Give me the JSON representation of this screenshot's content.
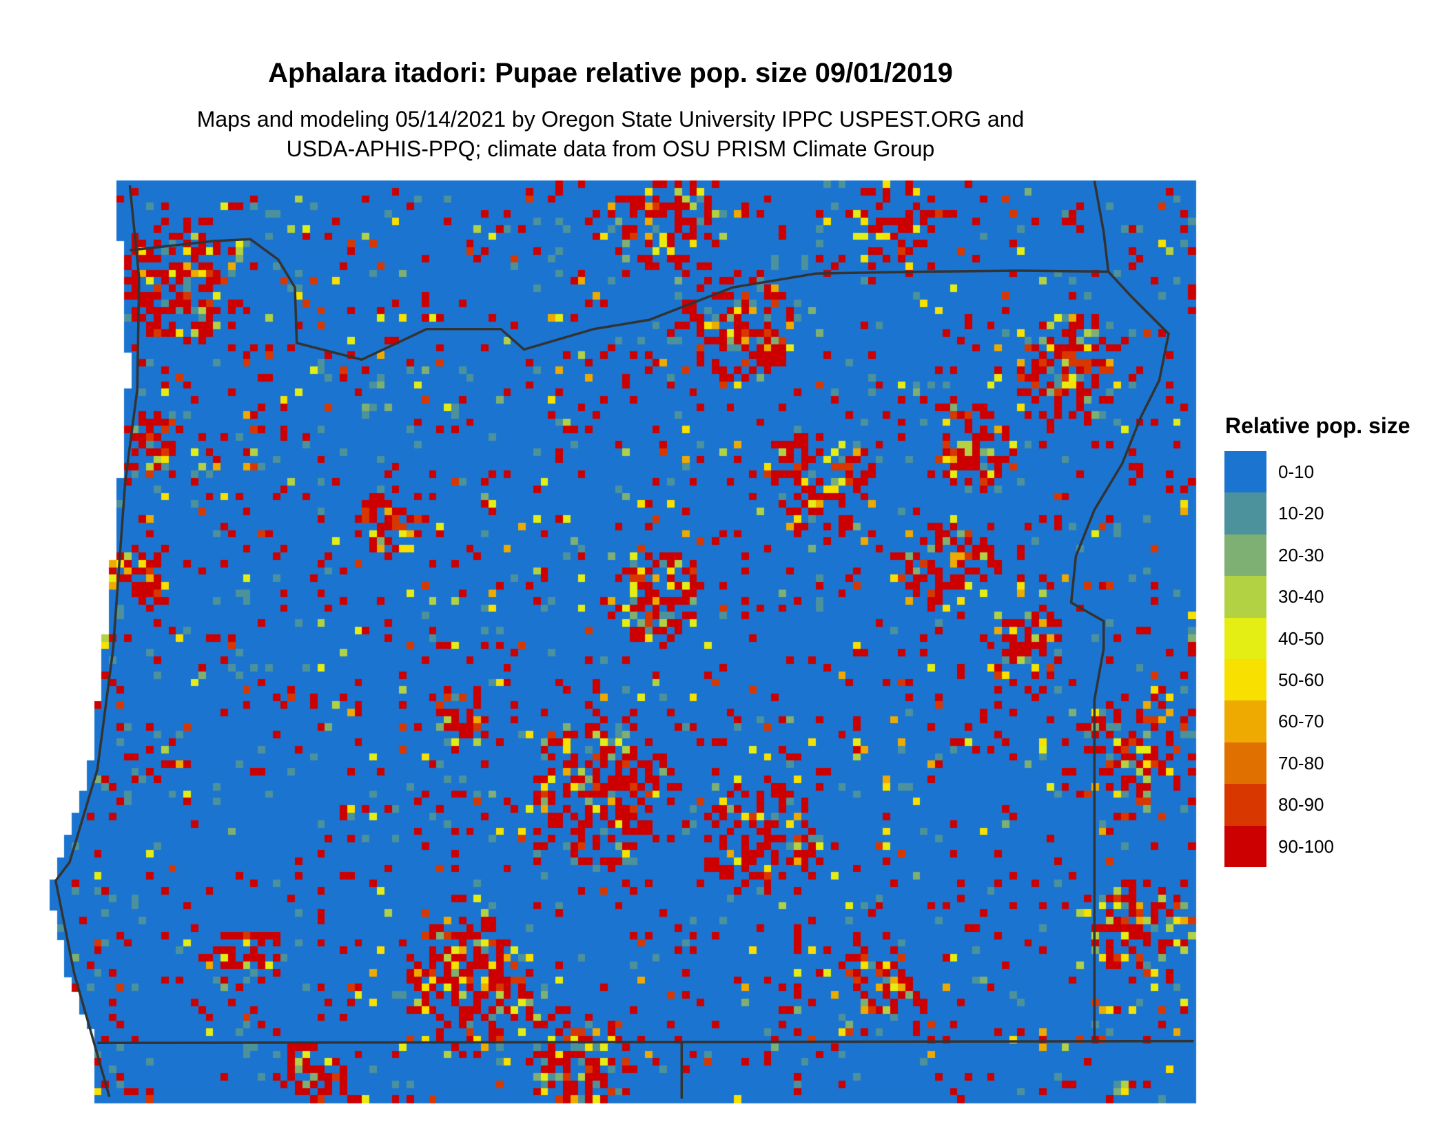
{
  "title": "Aphalara itadori: Pupae relative pop. size 09/01/2019",
  "subtitle_lines": [
    "Maps and modeling 05/14/2021 by Oregon State University IPPC USPEST.ORG and",
    "USDA-APHIS-PPQ; climate data from OSU PRISM Climate Group"
  ],
  "legend": {
    "title": "Relative pop. size",
    "items": [
      {
        "label": "0-10",
        "color": "#1b74cf"
      },
      {
        "label": "10-20",
        "color": "#4b929c"
      },
      {
        "label": "20-30",
        "color": "#7eb073"
      },
      {
        "label": "30-40",
        "color": "#b2d244"
      },
      {
        "label": "40-50",
        "color": "#e5ee14"
      },
      {
        "label": "50-60",
        "color": "#f8e000"
      },
      {
        "label": "60-70",
        "color": "#eeaa00"
      },
      {
        "label": "70-80",
        "color": "#e07000"
      },
      {
        "label": "80-90",
        "color": "#d83800"
      },
      {
        "label": "90-100",
        "color": "#cc0000"
      }
    ]
  },
  "boundary_color": "#333333"
}
